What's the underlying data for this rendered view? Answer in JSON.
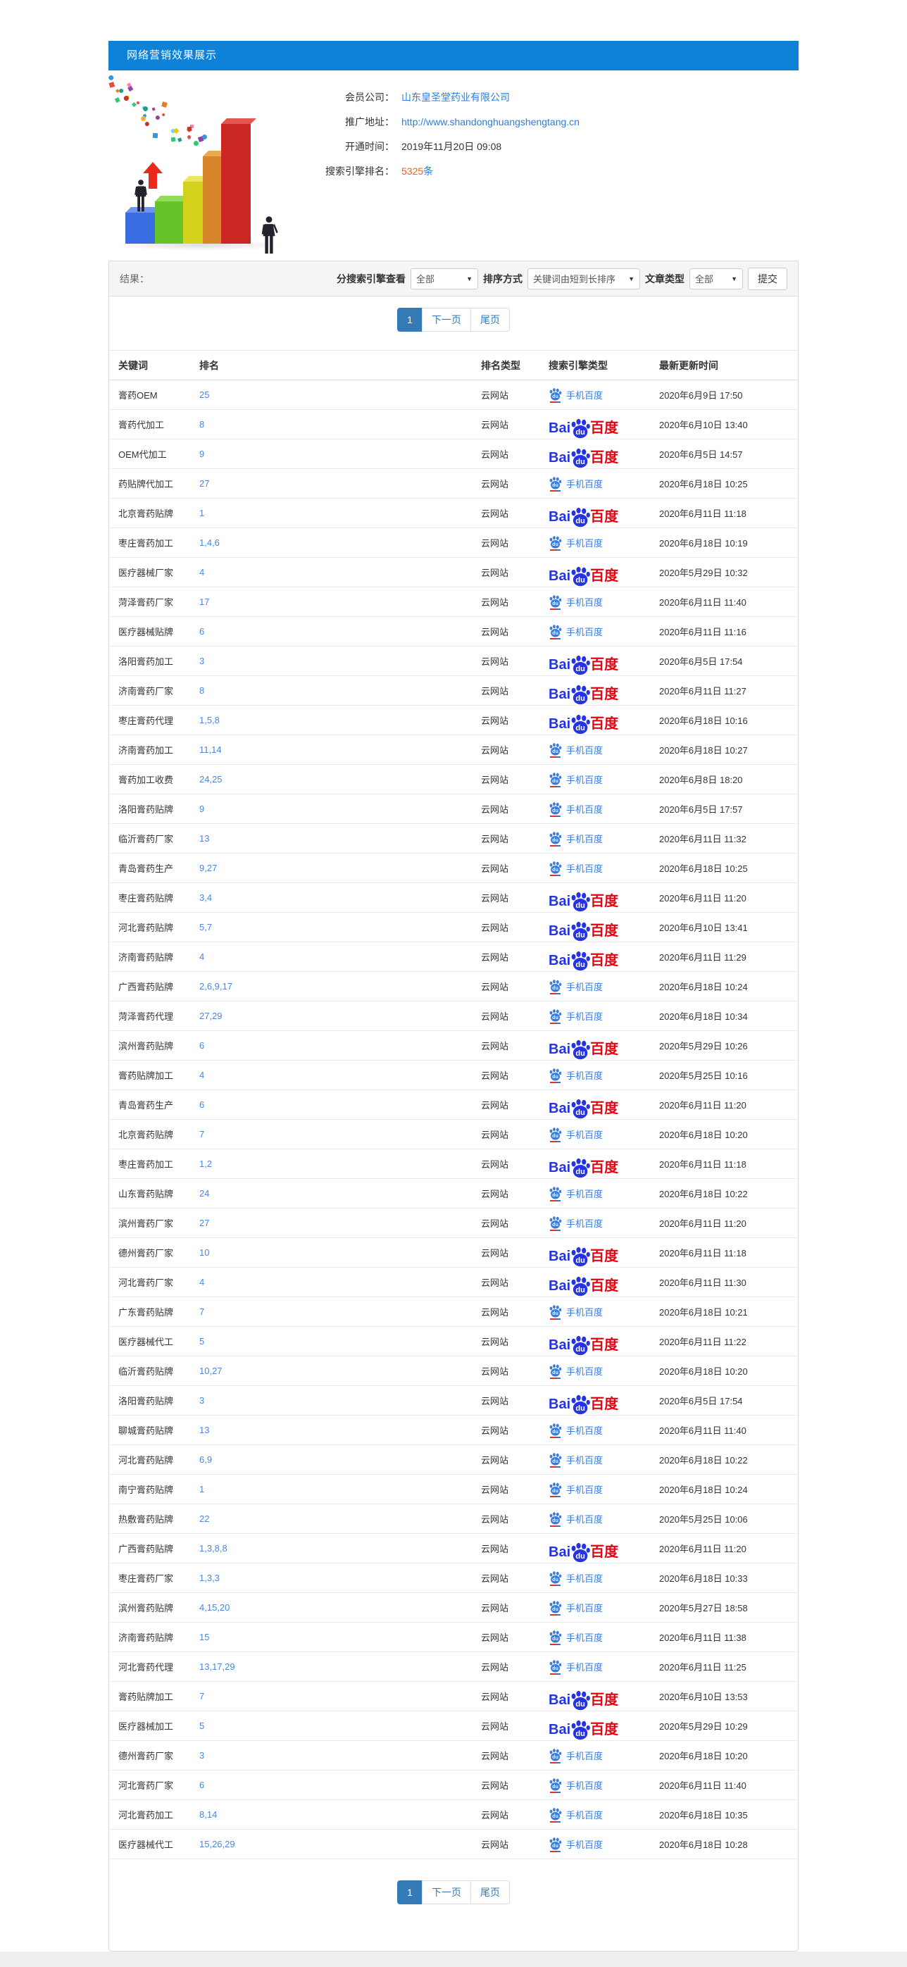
{
  "header": {
    "title": "网络营销效果展示"
  },
  "info": {
    "member_label": "会员公司：",
    "member_value": "山东皇圣堂药业有限公司",
    "url_label": "推广地址：",
    "url_value": "http://www.shandonghuangshengtang.cn",
    "opened_label": "开通时间：",
    "opened_value": "2019年11月20日 09:08",
    "rank_label": "搜索引擎排名：",
    "rank_count": "5325",
    "rank_unit": "条"
  },
  "filter": {
    "result_label": "结果：",
    "engine_view_label": "分搜索引擎查看",
    "engine_view_value": "全部",
    "sort_label": "排序方式",
    "sort_value": "关键词由短到长排序",
    "article_label": "文章类型",
    "article_value": "全部",
    "submit_label": "提交"
  },
  "pagination": {
    "current": "1",
    "next": "下一页",
    "last": "尾页"
  },
  "table": {
    "headers": [
      "关键词",
      "排名",
      "排名类型",
      "搜索引擎类型",
      "最新更新时间"
    ],
    "rank_type": "云网站",
    "engine": {
      "mobile_label": "手机百度",
      "pc_bai": "Bai",
      "pc_du": "百度",
      "paw_text": "du"
    },
    "rows": [
      {
        "keyword": "膏药OEM",
        "rank": "25",
        "engine": "mobile",
        "time": "2020年6月9日 17:50"
      },
      {
        "keyword": "膏药代加工",
        "rank": "8",
        "engine": "pc",
        "time": "2020年6月10日 13:40"
      },
      {
        "keyword": "OEM代加工",
        "rank": "9",
        "engine": "pc",
        "time": "2020年6月5日 14:57"
      },
      {
        "keyword": "药贴牌代加工",
        "rank": "27",
        "engine": "mobile",
        "time": "2020年6月18日 10:25"
      },
      {
        "keyword": "北京膏药贴牌",
        "rank": "1",
        "engine": "pc",
        "time": "2020年6月11日 11:18"
      },
      {
        "keyword": "枣庄膏药加工",
        "rank": "1,4,6",
        "engine": "mobile",
        "time": "2020年6月18日 10:19"
      },
      {
        "keyword": "医疗器械厂家",
        "rank": "4",
        "engine": "pc",
        "time": "2020年5月29日 10:32"
      },
      {
        "keyword": "菏泽膏药厂家",
        "rank": "17",
        "engine": "mobile",
        "time": "2020年6月11日 11:40"
      },
      {
        "keyword": "医疗器械贴牌",
        "rank": "6",
        "engine": "mobile",
        "time": "2020年6月11日 11:16"
      },
      {
        "keyword": "洛阳膏药加工",
        "rank": "3",
        "engine": "pc",
        "time": "2020年6月5日 17:54"
      },
      {
        "keyword": "济南膏药厂家",
        "rank": "8",
        "engine": "pc",
        "time": "2020年6月11日 11:27"
      },
      {
        "keyword": "枣庄膏药代理",
        "rank": "1,5,8",
        "engine": "pc",
        "time": "2020年6月18日 10:16"
      },
      {
        "keyword": "济南膏药加工",
        "rank": "11,14",
        "engine": "mobile",
        "time": "2020年6月18日 10:27"
      },
      {
        "keyword": "膏药加工收费",
        "rank": "24,25",
        "engine": "mobile",
        "time": "2020年6月8日 18:20"
      },
      {
        "keyword": "洛阳膏药贴牌",
        "rank": "9",
        "engine": "mobile",
        "time": "2020年6月5日 17:57"
      },
      {
        "keyword": "临沂膏药厂家",
        "rank": "13",
        "engine": "mobile",
        "time": "2020年6月11日 11:32"
      },
      {
        "keyword": "青岛膏药生产",
        "rank": "9,27",
        "engine": "mobile",
        "time": "2020年6月18日 10:25"
      },
      {
        "keyword": "枣庄膏药贴牌",
        "rank": "3,4",
        "engine": "pc",
        "time": "2020年6月11日 11:20"
      },
      {
        "keyword": "河北膏药贴牌",
        "rank": "5,7",
        "engine": "pc",
        "time": "2020年6月10日 13:41"
      },
      {
        "keyword": "济南膏药贴牌",
        "rank": "4",
        "engine": "pc",
        "time": "2020年6月11日 11:29"
      },
      {
        "keyword": "广西膏药贴牌",
        "rank": "2,6,9,17",
        "engine": "mobile",
        "time": "2020年6月18日 10:24"
      },
      {
        "keyword": "菏泽膏药代理",
        "rank": "27,29",
        "engine": "mobile",
        "time": "2020年6月18日 10:34"
      },
      {
        "keyword": "滨州膏药贴牌",
        "rank": "6",
        "engine": "pc",
        "time": "2020年5月29日 10:26"
      },
      {
        "keyword": "膏药贴牌加工",
        "rank": "4",
        "engine": "mobile",
        "time": "2020年5月25日 10:16"
      },
      {
        "keyword": "青岛膏药生产",
        "rank": "6",
        "engine": "pc",
        "time": "2020年6月11日 11:20"
      },
      {
        "keyword": "北京膏药贴牌",
        "rank": "7",
        "engine": "mobile",
        "time": "2020年6月18日 10:20"
      },
      {
        "keyword": "枣庄膏药加工",
        "rank": "1,2",
        "engine": "pc",
        "time": "2020年6月11日 11:18"
      },
      {
        "keyword": "山东膏药贴牌",
        "rank": "24",
        "engine": "mobile",
        "time": "2020年6月18日 10:22"
      },
      {
        "keyword": "滨州膏药厂家",
        "rank": "27",
        "engine": "mobile",
        "time": "2020年6月11日 11:20"
      },
      {
        "keyword": "德州膏药厂家",
        "rank": "10",
        "engine": "pc",
        "time": "2020年6月11日 11:18"
      },
      {
        "keyword": "河北膏药厂家",
        "rank": "4",
        "engine": "pc",
        "time": "2020年6月11日 11:30"
      },
      {
        "keyword": "广东膏药贴牌",
        "rank": "7",
        "engine": "mobile",
        "time": "2020年6月18日 10:21"
      },
      {
        "keyword": "医疗器械代工",
        "rank": "5",
        "engine": "pc",
        "time": "2020年6月11日 11:22"
      },
      {
        "keyword": "临沂膏药贴牌",
        "rank": "10,27",
        "engine": "mobile",
        "time": "2020年6月18日 10:20"
      },
      {
        "keyword": "洛阳膏药贴牌",
        "rank": "3",
        "engine": "pc",
        "time": "2020年6月5日 17:54"
      },
      {
        "keyword": "聊城膏药贴牌",
        "rank": "13",
        "engine": "mobile",
        "time": "2020年6月11日 11:40"
      },
      {
        "keyword": "河北膏药贴牌",
        "rank": "6,9",
        "engine": "mobile",
        "time": "2020年6月18日 10:22"
      },
      {
        "keyword": "南宁膏药贴牌",
        "rank": "1",
        "engine": "mobile",
        "time": "2020年6月18日 10:24"
      },
      {
        "keyword": "热敷膏药贴牌",
        "rank": "22",
        "engine": "mobile",
        "time": "2020年5月25日 10:06"
      },
      {
        "keyword": "广西膏药贴牌",
        "rank": "1,3,8,8",
        "engine": "pc",
        "time": "2020年6月11日 11:20"
      },
      {
        "keyword": "枣庄膏药厂家",
        "rank": "1,3,3",
        "engine": "mobile",
        "time": "2020年6月18日 10:33"
      },
      {
        "keyword": "滨州膏药贴牌",
        "rank": "4,15,20",
        "engine": "mobile",
        "time": "2020年5月27日 18:58"
      },
      {
        "keyword": "济南膏药贴牌",
        "rank": "15",
        "engine": "mobile",
        "time": "2020年6月11日 11:38"
      },
      {
        "keyword": "河北膏药代理",
        "rank": "13,17,29",
        "engine": "mobile",
        "time": "2020年6月11日 11:25"
      },
      {
        "keyword": "膏药贴牌加工",
        "rank": "7",
        "engine": "pc",
        "time": "2020年6月10日 13:53"
      },
      {
        "keyword": "医疗器械加工",
        "rank": "5",
        "engine": "pc",
        "time": "2020年5月29日 10:29"
      },
      {
        "keyword": "德州膏药厂家",
        "rank": "3",
        "engine": "mobile",
        "time": "2020年6月18日 10:20"
      },
      {
        "keyword": "河北膏药厂家",
        "rank": "6",
        "engine": "mobile",
        "time": "2020年6月11日 11:40"
      },
      {
        "keyword": "河北膏药加工",
        "rank": "8,14",
        "engine": "mobile",
        "time": "2020年6月18日 10:35"
      },
      {
        "keyword": "医疗器械代工",
        "rank": "15,26,29",
        "engine": "mobile",
        "time": "2020年6月18日 10:28"
      }
    ]
  },
  "colors": {
    "header_blue": "#0d82d6",
    "link_blue": "#2a7de1",
    "rank_blue": "#4a87d5",
    "accent_orange": "#ff5a00",
    "pagination_blue": "#337ab7",
    "baidu_blue": "#2534e0",
    "baidu_red": "#e00614",
    "mobile_engine_blue": "#3a7cd8"
  }
}
